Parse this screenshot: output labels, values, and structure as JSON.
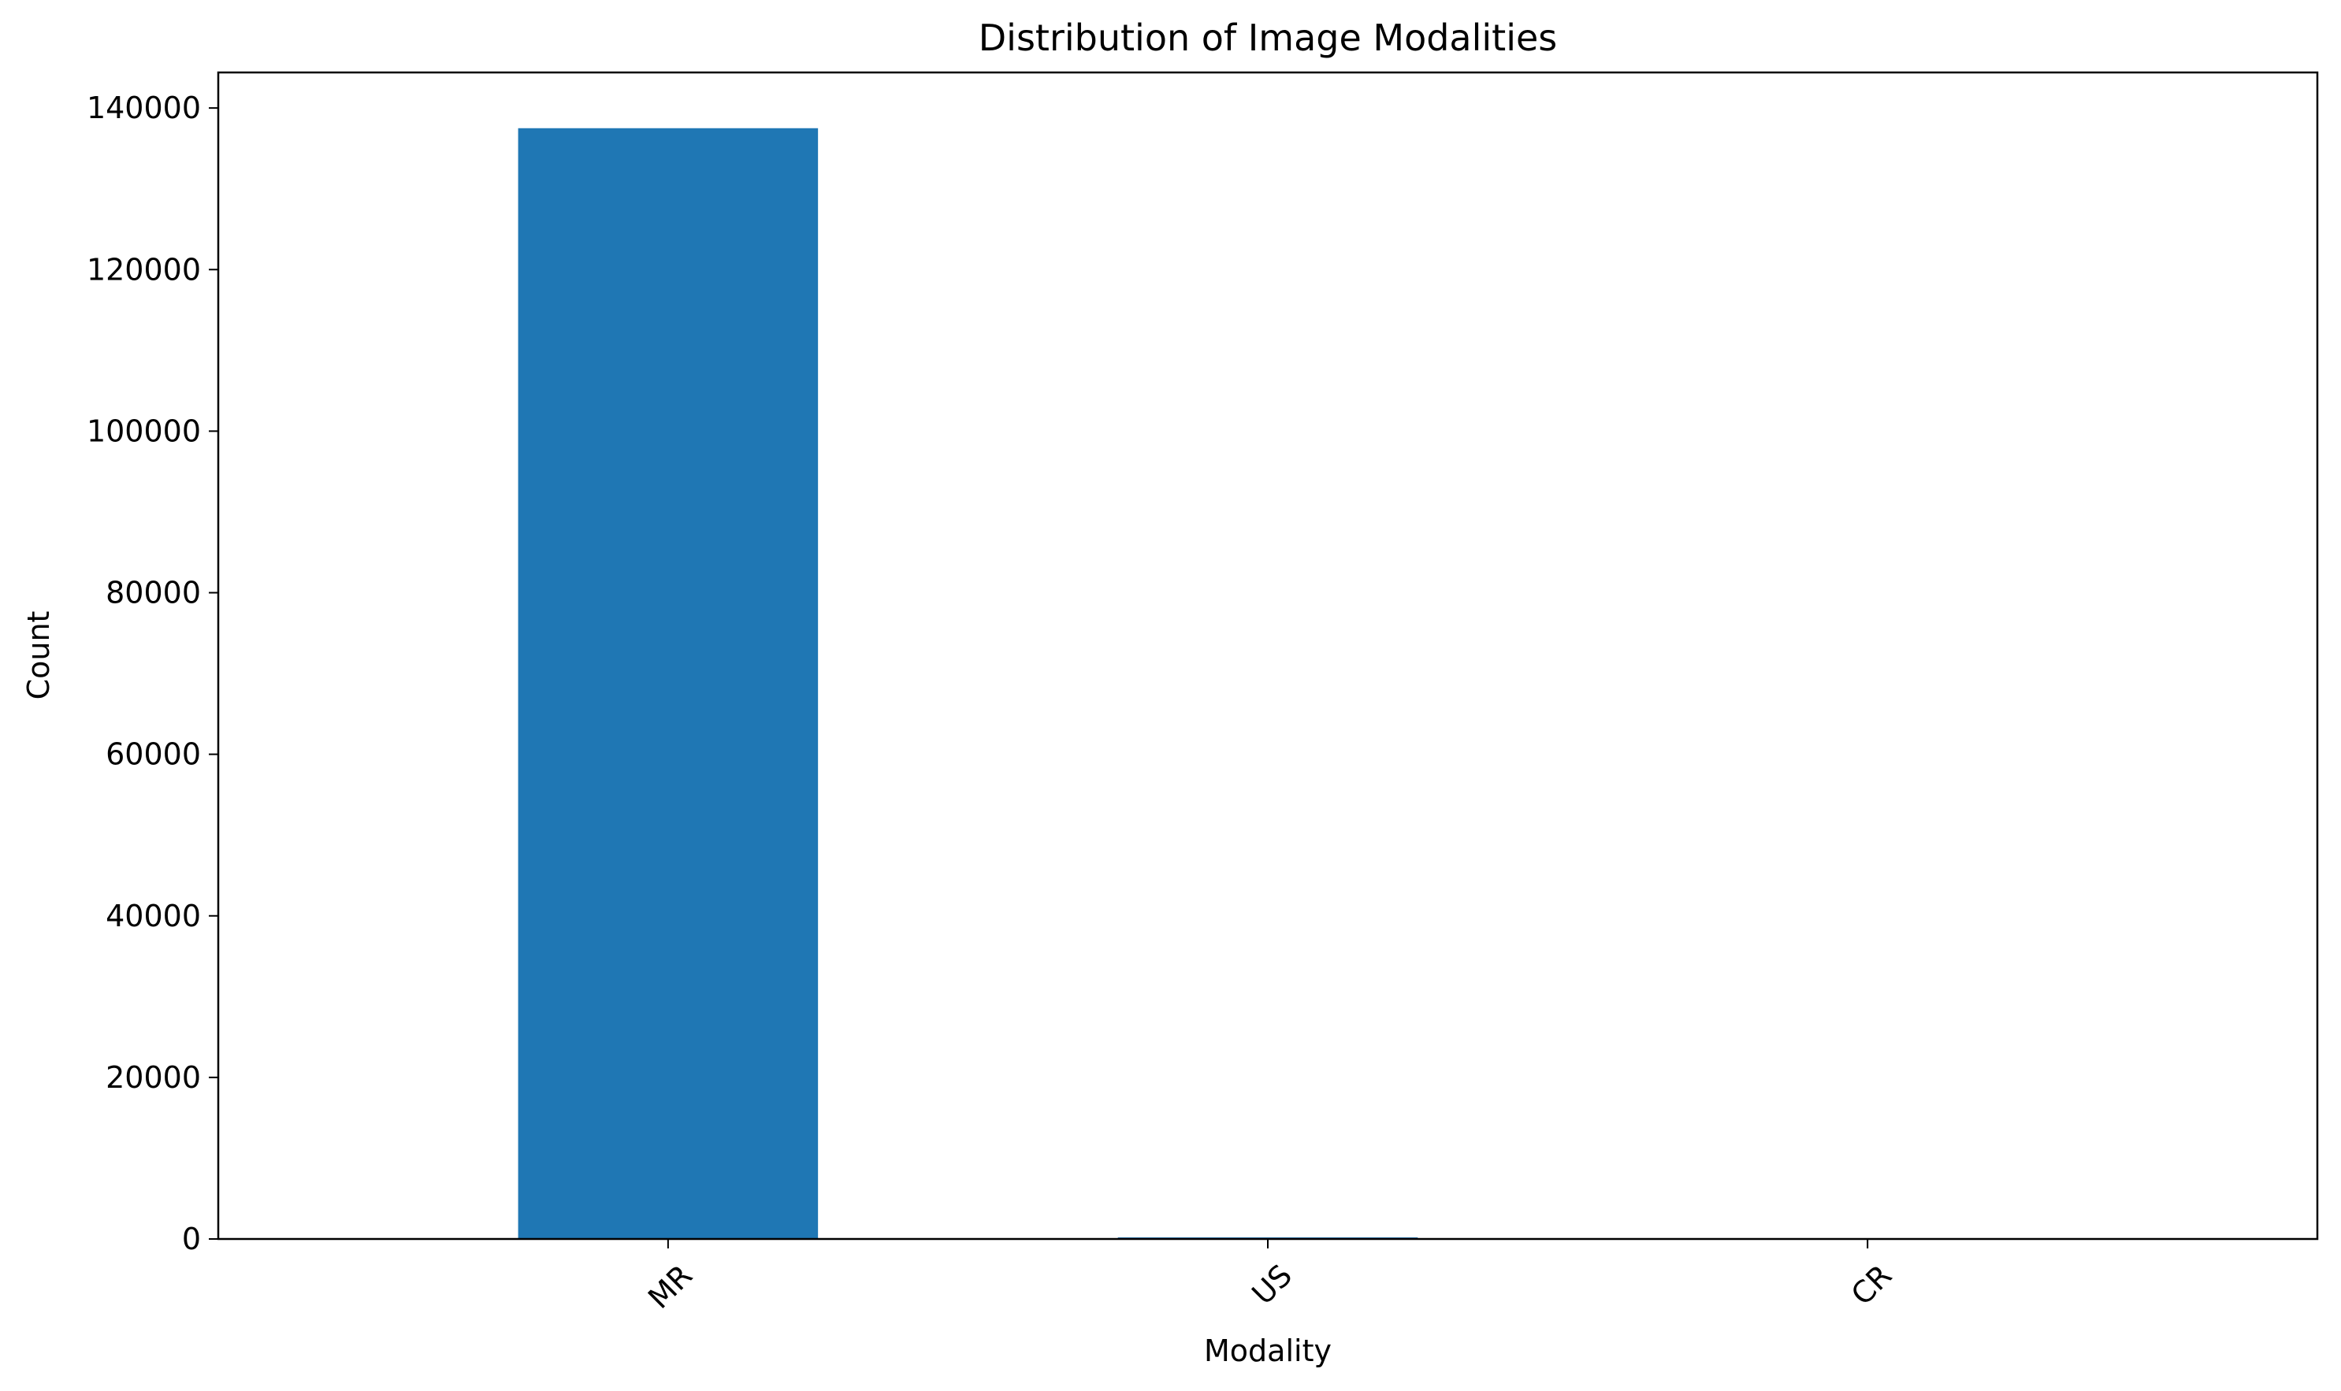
{
  "chart_data": {
    "type": "bar",
    "title": "Distribution of Image Modalities",
    "xlabel": "Modality",
    "ylabel": "Count",
    "categories": [
      "MR",
      "US",
      "CR"
    ],
    "values": [
      137500,
      200,
      20
    ],
    "ylim": [
      0,
      144400
    ],
    "yticks": [
      0,
      20000,
      40000,
      60000,
      80000,
      100000,
      120000,
      140000
    ],
    "grid": false,
    "bar_color": "#1f77b4",
    "x_tick_rotation_deg": 45
  }
}
